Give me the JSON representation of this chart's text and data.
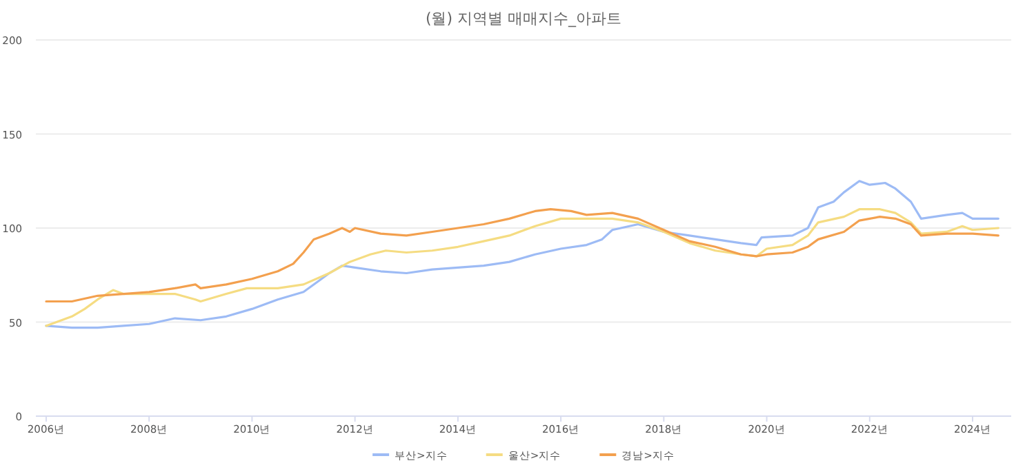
{
  "chart_data": {
    "type": "line",
    "title": "(월) 지역별 매매지수_아파트",
    "xlim": [
      2005.8,
      2024.75
    ],
    "ylim": [
      0,
      200
    ],
    "xticks": [
      {
        "value": 2006,
        "label": "2006년"
      },
      {
        "value": 2008,
        "label": "2008년"
      },
      {
        "value": 2010,
        "label": "2010년"
      },
      {
        "value": 2012,
        "label": "2012년"
      },
      {
        "value": 2014,
        "label": "2014년"
      },
      {
        "value": 2016,
        "label": "2016년"
      },
      {
        "value": 2018,
        "label": "2018년"
      },
      {
        "value": 2020,
        "label": "2020년"
      },
      {
        "value": 2022,
        "label": "2022년"
      },
      {
        "value": 2024,
        "label": "2024년"
      }
    ],
    "yticks": [
      0,
      50,
      100,
      150,
      200
    ],
    "grid": "y",
    "legend": "bottom",
    "series": [
      {
        "name": "부산>지수",
        "color": "#9dbbf5",
        "x": [
          2006,
          2006.5,
          2007,
          2007.5,
          2008,
          2008.5,
          2009,
          2009.5,
          2010,
          2010.5,
          2011,
          2011.3,
          2011.5,
          2011.75,
          2012,
          2012.5,
          2013,
          2013.5,
          2014,
          2014.5,
          2015,
          2015.5,
          2016,
          2016.5,
          2016.8,
          2017,
          2017.5,
          2018,
          2018.5,
          2019,
          2019.5,
          2019.8,
          2019.9,
          2020.5,
          2020.8,
          2021,
          2021.3,
          2021.5,
          2021.8,
          2022,
          2022.3,
          2022.5,
          2022.8,
          2023,
          2023.5,
          2023.8,
          2024,
          2024.5
        ],
        "values": [
          48,
          47,
          47,
          48,
          49,
          52,
          51,
          53,
          57,
          62,
          66,
          72,
          76,
          80,
          79,
          77,
          76,
          78,
          79,
          80,
          82,
          86,
          89,
          91,
          94,
          99,
          102,
          98,
          96,
          94,
          92,
          91,
          95,
          96,
          100,
          111,
          114,
          119,
          125,
          123,
          124,
          121,
          114,
          105,
          107,
          108,
          105,
          105
        ]
      },
      {
        "name": "울산>지수",
        "color": "#f5dc82",
        "x": [
          2006,
          2006.3,
          2006.5,
          2006.75,
          2007,
          2007.3,
          2007.5,
          2008,
          2008.5,
          2008.9,
          2009,
          2009.5,
          2009.9,
          2010.5,
          2011,
          2011.5,
          2011.9,
          2012.3,
          2012.6,
          2013,
          2013.5,
          2014,
          2014.5,
          2015,
          2015.5,
          2016,
          2016.5,
          2017,
          2017.5,
          2018,
          2018.5,
          2019,
          2019.5,
          2019.8,
          2020,
          2020.5,
          2020.8,
          2021,
          2021.5,
          2021.8,
          2022.2,
          2022.5,
          2022.8,
          2023,
          2023.5,
          2023.8,
          2024,
          2024.5
        ],
        "values": [
          48,
          51,
          53,
          57,
          62,
          67,
          65,
          65,
          65,
          62,
          61,
          65,
          68,
          68,
          70,
          76,
          82,
          86,
          88,
          87,
          88,
          90,
          93,
          96,
          101,
          105,
          105,
          105,
          103,
          98,
          92,
          88,
          86,
          85,
          89,
          91,
          96,
          103,
          106,
          110,
          110,
          108,
          103,
          97,
          98,
          101,
          99,
          100
        ]
      },
      {
        "name": "경남>지수",
        "color": "#f3a04e",
        "x": [
          2006,
          2006.5,
          2007,
          2007.5,
          2008,
          2008.5,
          2008.9,
          2009,
          2009.5,
          2010,
          2010.5,
          2010.8,
          2011,
          2011.2,
          2011.5,
          2011.75,
          2011.9,
          2012,
          2012.5,
          2013,
          2013.5,
          2014,
          2014.5,
          2015,
          2015.5,
          2015.8,
          2016.2,
          2016.5,
          2017,
          2017.5,
          2018,
          2018.5,
          2019,
          2019.5,
          2019.8,
          2020,
          2020.5,
          2020.8,
          2021,
          2021.5,
          2021.8,
          2022.2,
          2022.5,
          2022.8,
          2023,
          2023.5,
          2024,
          2024.5
        ],
        "values": [
          61,
          61,
          64,
          65,
          66,
          68,
          70,
          68,
          70,
          73,
          77,
          81,
          87,
          94,
          97,
          100,
          98,
          100,
          97,
          96,
          98,
          100,
          102,
          105,
          109,
          110,
          109,
          107,
          108,
          105,
          99,
          93,
          90,
          86,
          85,
          86,
          87,
          90,
          94,
          98,
          104,
          106,
          105,
          102,
          96,
          97,
          97,
          96
        ]
      }
    ]
  }
}
